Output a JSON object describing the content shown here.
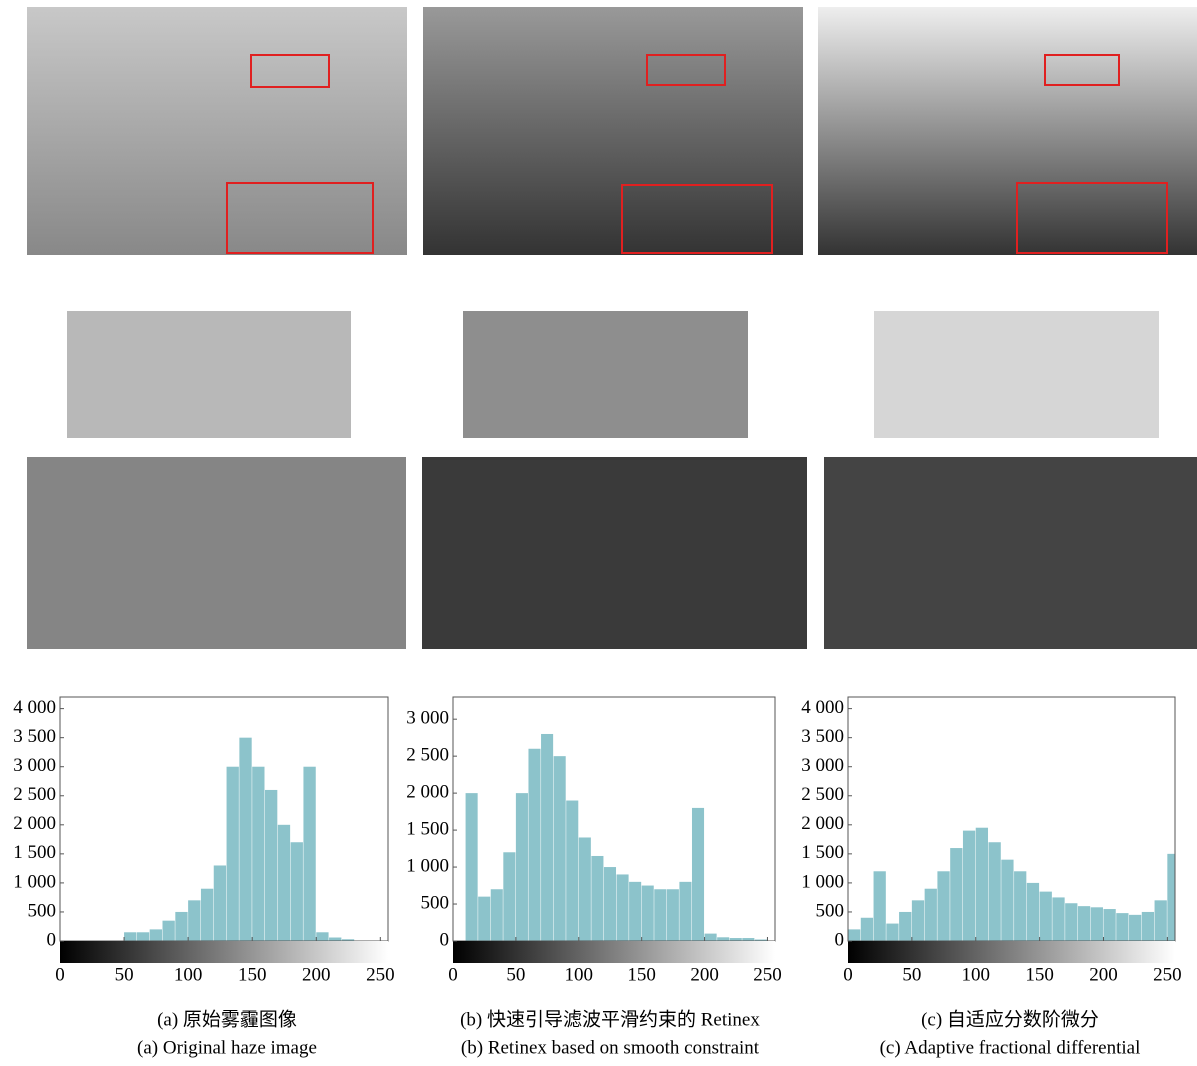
{
  "chart_data": [
    {
      "type": "histogram",
      "color": "#8cc3cb",
      "xlim": [
        0,
        256
      ],
      "ylim": [
        0,
        4200
      ],
      "xticks": [
        0,
        50,
        100,
        150,
        200,
        250
      ],
      "yticks": [
        0,
        500,
        {
          "value": 1000,
          "label": "1 000"
        },
        {
          "value": 1500,
          "label": "1 500"
        },
        {
          "value": 2000,
          "label": "2 000"
        },
        {
          "value": 2500,
          "label": "2 500"
        },
        {
          "value": 3000,
          "label": "3 000"
        },
        {
          "value": 3500,
          "label": "3 500"
        },
        {
          "value": 4000,
          "label": "4 000"
        }
      ],
      "bins": [
        0,
        10,
        20,
        30,
        40,
        50,
        60,
        70,
        80,
        90,
        100,
        110,
        120,
        130,
        140,
        150,
        160,
        170,
        180,
        190,
        200,
        210,
        220,
        230,
        240,
        250,
        256
      ],
      "values": [
        0,
        0,
        0,
        0,
        0,
        150,
        150,
        200,
        350,
        500,
        700,
        900,
        1300,
        3000,
        3500,
        3000,
        2600,
        2000,
        1700,
        3000,
        150,
        60,
        30,
        0,
        0,
        0
      ],
      "caption_zh": "(a) 原始雾霾图像",
      "caption_en": "(a) Original haze image"
    },
    {
      "type": "histogram",
      "color": "#8cc3cb",
      "xlim": [
        0,
        256
      ],
      "ylim": [
        0,
        3300
      ],
      "xticks": [
        0,
        50,
        100,
        150,
        200,
        250
      ],
      "yticks": [
        0,
        500,
        {
          "value": 1000,
          "label": "1 000"
        },
        {
          "value": 1500,
          "label": "1 500"
        },
        {
          "value": 2000,
          "label": "2 000"
        },
        {
          "value": 2500,
          "label": "2 500"
        },
        {
          "value": 3000,
          "label": "3 000"
        }
      ],
      "bins": [
        0,
        10,
        20,
        30,
        40,
        50,
        60,
        70,
        80,
        90,
        100,
        110,
        120,
        130,
        140,
        150,
        160,
        170,
        180,
        190,
        200,
        210,
        220,
        230,
        240,
        250,
        256
      ],
      "values": [
        0,
        2000,
        600,
        700,
        1200,
        2000,
        2600,
        2800,
        2500,
        1900,
        1400,
        1150,
        1000,
        900,
        800,
        750,
        700,
        700,
        800,
        1800,
        100,
        50,
        40,
        40,
        20,
        0
      ],
      "caption_zh": "(b) 快速引导滤波平滑约束的 Retinex",
      "caption_en": "(b) Retinex based on smooth constraint"
    },
    {
      "type": "histogram",
      "color": "#8cc3cb",
      "xlim": [
        0,
        256
      ],
      "ylim": [
        0,
        4200
      ],
      "xticks": [
        0,
        50,
        100,
        150,
        200,
        250
      ],
      "yticks": [
        0,
        500,
        {
          "value": 1000,
          "label": "1 000"
        },
        {
          "value": 1500,
          "label": "1 500"
        },
        {
          "value": 2000,
          "label": "2 000"
        },
        {
          "value": 2500,
          "label": "2 500"
        },
        {
          "value": 3000,
          "label": "3 000"
        },
        {
          "value": 3500,
          "label": "3 500"
        },
        {
          "value": 4000,
          "label": "4 000"
        }
      ],
      "bins": [
        0,
        10,
        20,
        30,
        40,
        50,
        60,
        70,
        80,
        90,
        100,
        110,
        120,
        130,
        140,
        150,
        160,
        170,
        180,
        190,
        200,
        210,
        220,
        230,
        240,
        250,
        256
      ],
      "values": [
        200,
        400,
        1200,
        300,
        500,
        700,
        900,
        1200,
        1600,
        1900,
        1950,
        1700,
        1400,
        1200,
        1000,
        850,
        750,
        650,
        600,
        580,
        550,
        480,
        450,
        500,
        700,
        1500
      ],
      "caption_zh": "(c) 自适应分数阶微分",
      "caption_en": "(c) Adaptive fractional differential"
    }
  ]
}
